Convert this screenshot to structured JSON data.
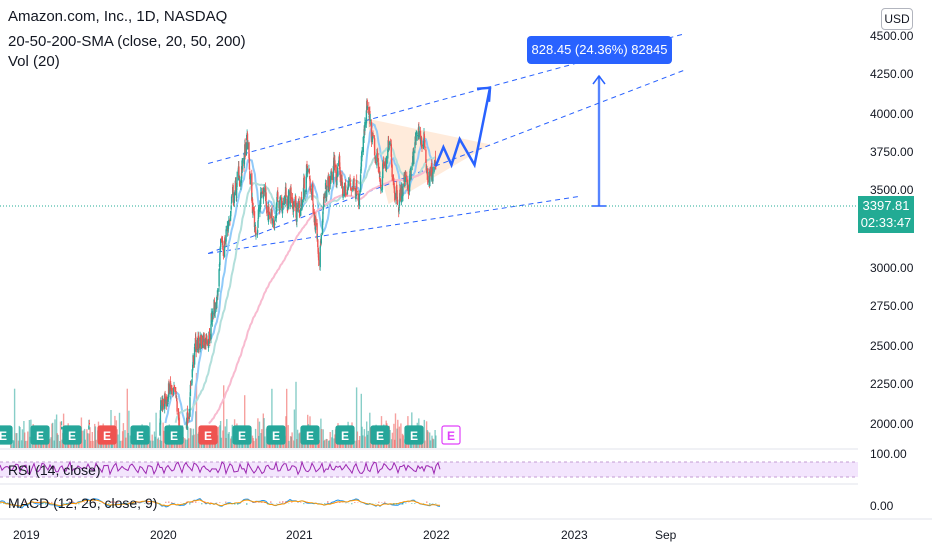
{
  "header": {
    "symbol_title": "Amazon.com, Inc., 1D, NASDAQ",
    "indicator_sma": "20-50-200-SMA (close, 20, 50, 200)",
    "indicator_vol": "Vol (20)"
  },
  "currency_button": "USD",
  "price_axis_labels": [
    "4500.00",
    "4250.00",
    "4000.00",
    "3750.00",
    "3500.00",
    "3000.00",
    "2750.00",
    "2500.00",
    "2250.00",
    "2000.00"
  ],
  "rsi_axis_label": "100.00",
  "macd_axis_label": "0.00",
  "time_axis_labels": [
    "2019",
    "2020",
    "2021",
    "2022",
    "2023",
    "Sep"
  ],
  "current_price": {
    "value": "3397.81",
    "countdown": "02:33:47"
  },
  "measure_label": "828.45 (24.36%) 82845",
  "rsi_label": "RSI (14, close)",
  "macd_label": "MACD (12, 26, close, 9)",
  "earnings_marker": "E",
  "colors": {
    "up": "#26a69a",
    "down": "#ef5350",
    "projection": "#2962ff",
    "sma20": "#90caf9",
    "sma50": "#b2dfdb",
    "sma200": "#f8bbd0",
    "triangle_fill": "#ffe0c7",
    "price_tag": "#22ab94",
    "rsi_line": "#9c27b0",
    "rsi_band": "#f3e5fd"
  },
  "chart_data": {
    "type": "line",
    "title": "Amazon.com, Inc., 1D, NASDAQ",
    "x_axis_type": "date",
    "y_scale": "log",
    "ylim": [
      1900,
      4620
    ],
    "grid": false,
    "close_series": {
      "name": "",
      "x": [
        "2019-01-01",
        "2019-07-01",
        "2019-12-31",
        "2020-02-15",
        "2020-03-20",
        "2020-04-15",
        "2020-05-15",
        "2020-06-15",
        "2020-07-15",
        "2020-09-02",
        "2020-09-20",
        "2020-10-15",
        "2020-11-15",
        "2020-12-15",
        "2021-01-15",
        "2021-02-02",
        "2021-03-08",
        "2021-04-15",
        "2021-05-15",
        "2021-06-15",
        "2021-07-08",
        "2021-07-30",
        "2021-09-01",
        "2021-10-01",
        "2021-11-01",
        "2021-11-19",
        "2021-12-15",
        "2021-12-31"
      ],
      "y": [
        1700,
        1900,
        1850,
        2150,
        1850,
        2300,
        2420,
        2600,
        3050,
        3530,
        3000,
        3250,
        3100,
        3250,
        3100,
        3360,
        3000,
        3400,
        3220,
        3380,
        3730,
        3330,
        3470,
        3280,
        3400,
        3680,
        3380,
        3400
      ]
    },
    "projection_path": {
      "x": [
        "2021-12-31",
        "2022-01-20",
        "2022-02-10",
        "2022-03-03",
        "2022-04-10",
        "2022-05-20"
      ],
      "y": [
        3420,
        3560,
        3430,
        3620,
        3430,
        4030
      ]
    },
    "measured_move": {
      "from": 3397.81,
      "to": 4226.26,
      "change": 828.45,
      "percent": 24.36
    },
    "trend_channel_upper": {
      "x": [
        "2020-05-25",
        "2023-10-01"
      ],
      "y": [
        3440,
        4510
      ]
    },
    "trend_channel_lower": {
      "x": [
        "2020-05-25",
        "2023-10-01"
      ],
      "y": [
        2850,
        4180
      ]
    },
    "support_line": {
      "x": [
        "2020-05-25",
        "2023-01-01"
      ],
      "y": [
        2850,
        3210
      ]
    },
    "triangle": {
      "x": [
        "2021-07-05",
        "2021-09-01",
        "2022-05-20"
      ],
      "y": [
        3780,
        3160,
        3580
      ]
    },
    "rsi": {
      "label": "RSI (14, close)",
      "ylim": [
        0,
        100
      ],
      "band": [
        30,
        70
      ]
    },
    "macd": {
      "label": "MACD (12, 26, close, 9)"
    }
  }
}
